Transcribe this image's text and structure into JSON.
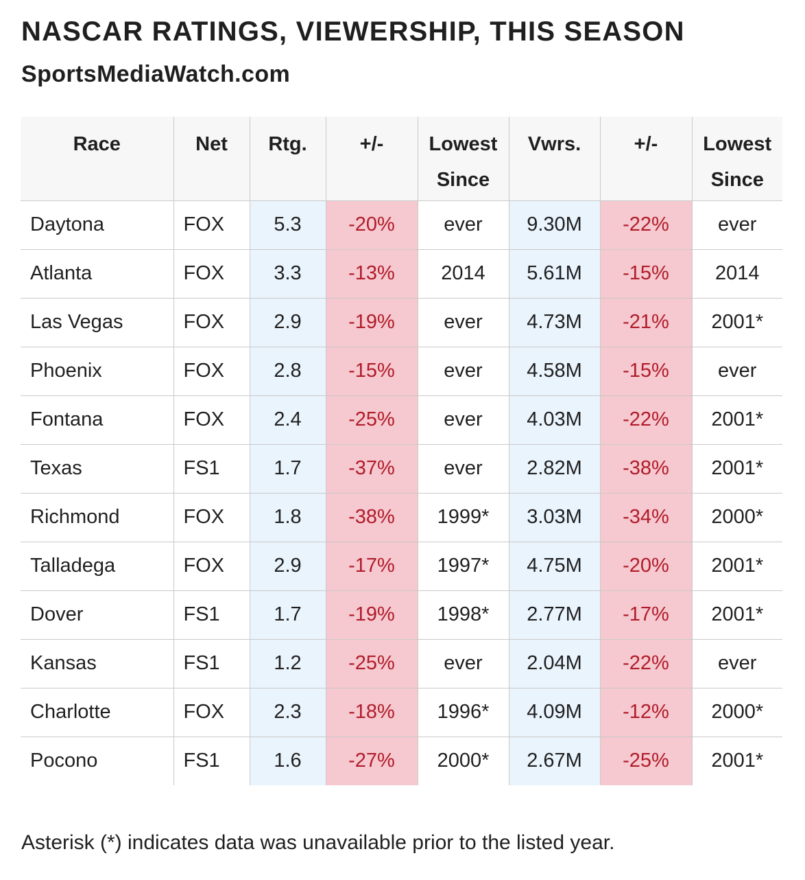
{
  "title": "NASCAR RATINGS, VIEWERSHIP, THIS SEASON",
  "subtitle": "SportsMediaWatch.com",
  "table": {
    "headers": {
      "race": "Race",
      "net": "Net",
      "rating": "Rtg.",
      "rating_change": "+/-",
      "rating_lowest": "Lowest Since",
      "viewers": "Vwrs.",
      "viewers_change": "+/-",
      "viewers_lowest": "Lowest Since"
    },
    "rows": [
      {
        "race": "Daytona",
        "net": "FOX",
        "rating": "5.3",
        "rating_change": "-20%",
        "rating_lowest": "ever",
        "viewers": "9.30M",
        "viewers_change": "-22%",
        "viewers_lowest": "ever"
      },
      {
        "race": "Atlanta",
        "net": "FOX",
        "rating": "3.3",
        "rating_change": "-13%",
        "rating_lowest": "2014",
        "viewers": "5.61M",
        "viewers_change": "-15%",
        "viewers_lowest": "2014"
      },
      {
        "race": "Las Vegas",
        "net": "FOX",
        "rating": "2.9",
        "rating_change": "-19%",
        "rating_lowest": "ever",
        "viewers": "4.73M",
        "viewers_change": "-21%",
        "viewers_lowest": "2001*"
      },
      {
        "race": "Phoenix",
        "net": "FOX",
        "rating": "2.8",
        "rating_change": "-15%",
        "rating_lowest": "ever",
        "viewers": "4.58M",
        "viewers_change": "-15%",
        "viewers_lowest": "ever"
      },
      {
        "race": "Fontana",
        "net": "FOX",
        "rating": "2.4",
        "rating_change": "-25%",
        "rating_lowest": "ever",
        "viewers": "4.03M",
        "viewers_change": "-22%",
        "viewers_lowest": "2001*"
      },
      {
        "race": "Texas",
        "net": "FS1",
        "rating": "1.7",
        "rating_change": "-37%",
        "rating_lowest": "ever",
        "viewers": "2.82M",
        "viewers_change": "-38%",
        "viewers_lowest": "2001*"
      },
      {
        "race": "Richmond",
        "net": "FOX",
        "rating": "1.8",
        "rating_change": "-38%",
        "rating_lowest": "1999*",
        "viewers": "3.03M",
        "viewers_change": "-34%",
        "viewers_lowest": "2000*"
      },
      {
        "race": "Talladega",
        "net": "FOX",
        "rating": "2.9",
        "rating_change": "-17%",
        "rating_lowest": "1997*",
        "viewers": "4.75M",
        "viewers_change": "-20%",
        "viewers_lowest": "2001*"
      },
      {
        "race": "Dover",
        "net": "FS1",
        "rating": "1.7",
        "rating_change": "-19%",
        "rating_lowest": "1998*",
        "viewers": "2.77M",
        "viewers_change": "-17%",
        "viewers_lowest": "2001*"
      },
      {
        "race": "Kansas",
        "net": "FS1",
        "rating": "1.2",
        "rating_change": "-25%",
        "rating_lowest": "ever",
        "viewers": "2.04M",
        "viewers_change": "-22%",
        "viewers_lowest": "ever"
      },
      {
        "race": "Charlotte",
        "net": "FOX",
        "rating": "2.3",
        "rating_change": "-18%",
        "rating_lowest": "1996*",
        "viewers": "4.09M",
        "viewers_change": "-12%",
        "viewers_lowest": "2000*"
      },
      {
        "race": "Pocono",
        "net": "FS1",
        "rating": "1.6",
        "rating_change": "-27%",
        "rating_lowest": "2000*",
        "viewers": "2.67M",
        "viewers_change": "-25%",
        "viewers_lowest": "2001*"
      }
    ]
  },
  "footnote": "Asterisk (*) indicates data was unavailable prior to the listed year.",
  "colors": {
    "value_highlight": "#eaf4fd",
    "decline_highlight": "#f6c8cf",
    "decline_text": "#b01c2a",
    "header_background": "#f7f7f7"
  }
}
